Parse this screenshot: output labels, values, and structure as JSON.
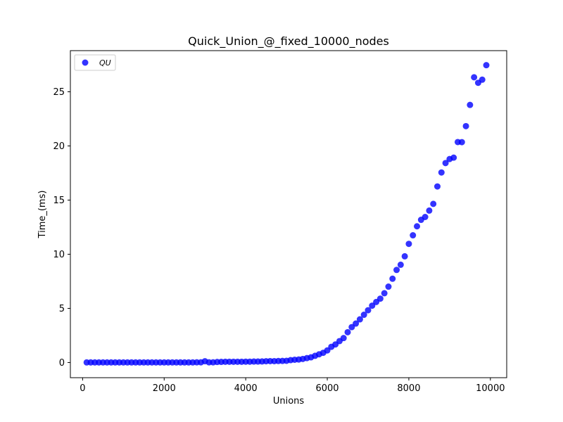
{
  "chart_data": {
    "type": "scatter",
    "title": "Quick_Union_@_fixed_10000_nodes",
    "xlabel": "Unions",
    "ylabel": "Time_(ms)",
    "xlim": [
      -300,
      10400
    ],
    "ylim": [
      -1.4,
      28.8
    ],
    "xticks": [
      0,
      2000,
      4000,
      6000,
      8000,
      10000
    ],
    "xtick_labels": [
      "0",
      "2000",
      "4000",
      "6000",
      "8000",
      "10000"
    ],
    "yticks": [
      0,
      5,
      10,
      15,
      20,
      25
    ],
    "ytick_labels": [
      "0",
      "5",
      "10",
      "15",
      "20",
      "25"
    ],
    "grid": false,
    "legend": {
      "position": "top-left"
    },
    "series": [
      {
        "name": "QU",
        "color": "#0000ff",
        "x": [
          100,
          200,
          300,
          400,
          500,
          600,
          700,
          800,
          900,
          1000,
          1100,
          1200,
          1300,
          1400,
          1500,
          1600,
          1700,
          1800,
          1900,
          2000,
          2100,
          2200,
          2300,
          2400,
          2500,
          2600,
          2700,
          2800,
          2900,
          3000,
          3100,
          3200,
          3300,
          3400,
          3500,
          3600,
          3700,
          3800,
          3900,
          4000,
          4100,
          4200,
          4300,
          4400,
          4500,
          4600,
          4700,
          4800,
          4900,
          5000,
          5100,
          5200,
          5300,
          5400,
          5500,
          5600,
          5700,
          5800,
          5900,
          6000,
          6100,
          6200,
          6300,
          6400,
          6500,
          6600,
          6700,
          6800,
          6900,
          7000,
          7100,
          7200,
          7300,
          7400,
          7500,
          7600,
          7700,
          7800,
          7900,
          8000,
          8100,
          8200,
          8300,
          8400,
          8500,
          8600,
          8700,
          8800,
          8900,
          9000,
          9100,
          9200,
          9300,
          9400,
          9500,
          9600,
          9700,
          9800,
          9900
        ],
        "y": [
          0.01,
          0.01,
          0.01,
          0.01,
          0.01,
          0.01,
          0.01,
          0.01,
          0.01,
          0.01,
          0.01,
          0.01,
          0.01,
          0.01,
          0.01,
          0.01,
          0.01,
          0.01,
          0.01,
          0.01,
          0.01,
          0.01,
          0.01,
          0.01,
          0.01,
          0.01,
          0.01,
          0.02,
          0.02,
          0.12,
          0.02,
          0.02,
          0.05,
          0.06,
          0.07,
          0.07,
          0.07,
          0.07,
          0.07,
          0.08,
          0.08,
          0.09,
          0.09,
          0.1,
          0.12,
          0.13,
          0.13,
          0.14,
          0.15,
          0.16,
          0.22,
          0.26,
          0.28,
          0.33,
          0.41,
          0.48,
          0.62,
          0.76,
          0.9,
          1.12,
          1.45,
          1.67,
          1.98,
          2.26,
          2.8,
          3.27,
          3.6,
          3.99,
          4.41,
          4.83,
          5.25,
          5.59,
          5.9,
          6.4,
          7.01,
          7.74,
          8.55,
          9.03,
          9.81,
          10.96,
          11.75,
          12.58,
          13.18,
          13.44,
          14.03,
          14.65,
          16.26,
          17.55,
          18.42,
          18.79,
          18.92,
          20.36,
          20.35,
          21.83,
          23.79,
          26.34,
          25.83,
          26.12,
          27.46
        ]
      }
    ]
  }
}
